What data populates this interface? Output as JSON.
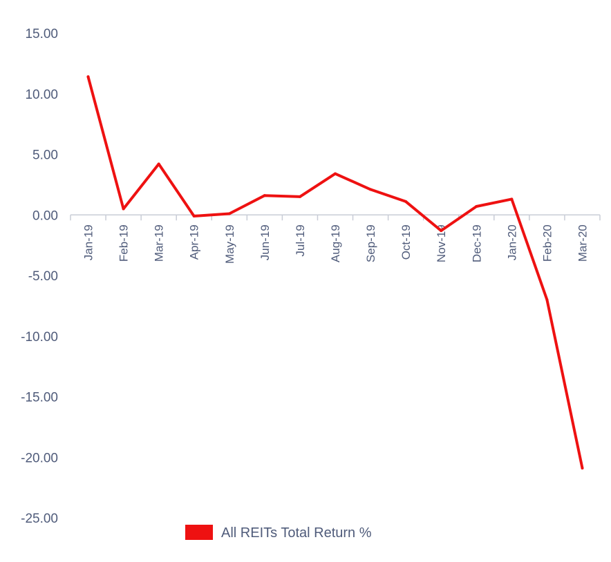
{
  "chart_data": {
    "type": "line",
    "categories": [
      "Jan-19",
      "Feb-19",
      "Mar-19",
      "Apr-19",
      "May-19",
      "Jun-19",
      "Jul-19",
      "Aug-19",
      "Sep-19",
      "Oct-19",
      "Nov-19",
      "Dec-19",
      "Jan-20",
      "Feb-20",
      "Mar-20"
    ],
    "series": [
      {
        "name": "All REITs Total Return %",
        "color": "#ee1111",
        "values": [
          11.4,
          0.5,
          4.2,
          -0.1,
          0.1,
          1.6,
          1.5,
          3.4,
          2.1,
          1.1,
          -1.3,
          0.7,
          1.3,
          -7.0,
          -20.9
        ]
      }
    ],
    "yticks": [
      "15.00",
      "10.00",
      "5.00",
      "0.00",
      "-5.00",
      "-10.00",
      "-15.00",
      "-20.00",
      "-25.00"
    ],
    "ylim": [
      -25,
      15
    ],
    "grid": false,
    "legend_position": "bottom",
    "colors": {
      "axis_text": "#4f5b7a",
      "axis_line": "#c8ccd6"
    }
  }
}
